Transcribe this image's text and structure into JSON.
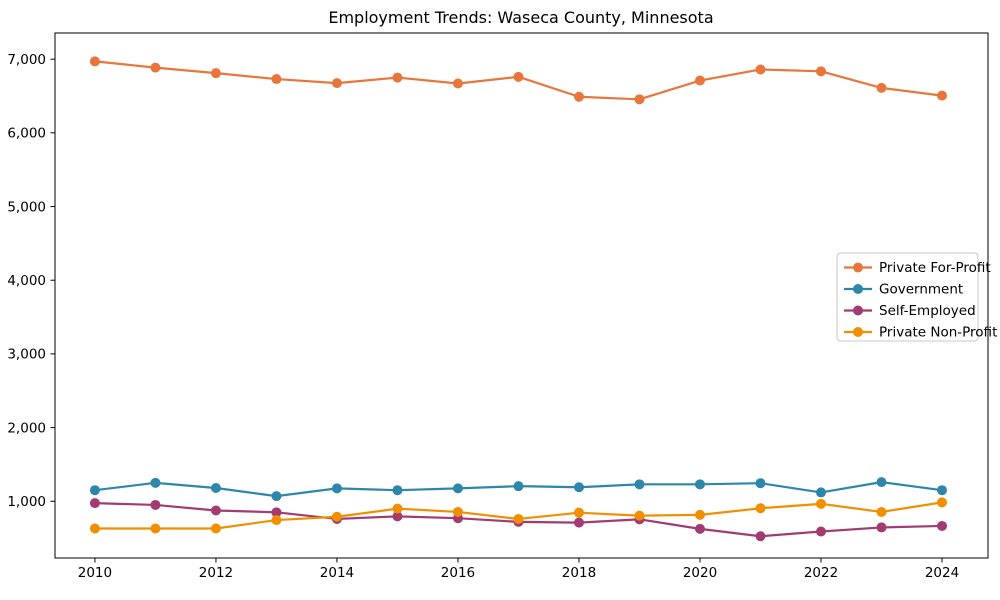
{
  "title": "Employment Trends: Waseca County, Minnesota",
  "chart_data": {
    "type": "line",
    "x": [
      2010,
      2011,
      2012,
      2013,
      2014,
      2015,
      2016,
      2017,
      2018,
      2019,
      2020,
      2021,
      2022,
      2023,
      2024
    ],
    "series": [
      {
        "name": "Private For-Profit",
        "color": "#E8763C",
        "values": [
          6970,
          6885,
          6810,
          6730,
          6675,
          6750,
          6670,
          6760,
          6490,
          6455,
          6710,
          6860,
          6835,
          6610,
          6505
        ]
      },
      {
        "name": "Government",
        "color": "#2E86AB",
        "values": [
          1150,
          1250,
          1180,
          1070,
          1175,
          1150,
          1175,
          1205,
          1190,
          1230,
          1230,
          1245,
          1120,
          1260,
          1150
        ]
      },
      {
        "name": "Self-Employed",
        "color": "#A23B72",
        "values": [
          975,
          950,
          875,
          850,
          760,
          795,
          770,
          720,
          710,
          755,
          625,
          525,
          590,
          645,
          665
        ]
      },
      {
        "name": "Private Non-Profit",
        "color": "#F18F01",
        "values": [
          630,
          630,
          630,
          745,
          790,
          900,
          855,
          760,
          845,
          805,
          815,
          905,
          965,
          855,
          985
        ]
      }
    ],
    "title": "Employment Trends: Waseca County, Minnesota",
    "xlabel": "",
    "ylabel": "",
    "xticks": [
      2010,
      2012,
      2014,
      2016,
      2018,
      2020,
      2022,
      2024
    ],
    "xtick_labels": [
      "2010",
      "2012",
      "2014",
      "2016",
      "2018",
      "2020",
      "2022",
      "2024"
    ],
    "yticks": [
      1000,
      2000,
      3000,
      4000,
      5000,
      6000,
      7000
    ],
    "ytick_labels": [
      "1,000",
      "2,000",
      "3,000",
      "4,000",
      "5,000",
      "6,000",
      "7,000"
    ],
    "xlim": [
      2009.34,
      2024.76
    ],
    "ylim": [
      230,
      7355
    ],
    "grid": false,
    "legend_position": "center right",
    "axis_color": "#000000",
    "legend_border_color": "#c9c9c9",
    "background_color": "#ffffff"
  }
}
